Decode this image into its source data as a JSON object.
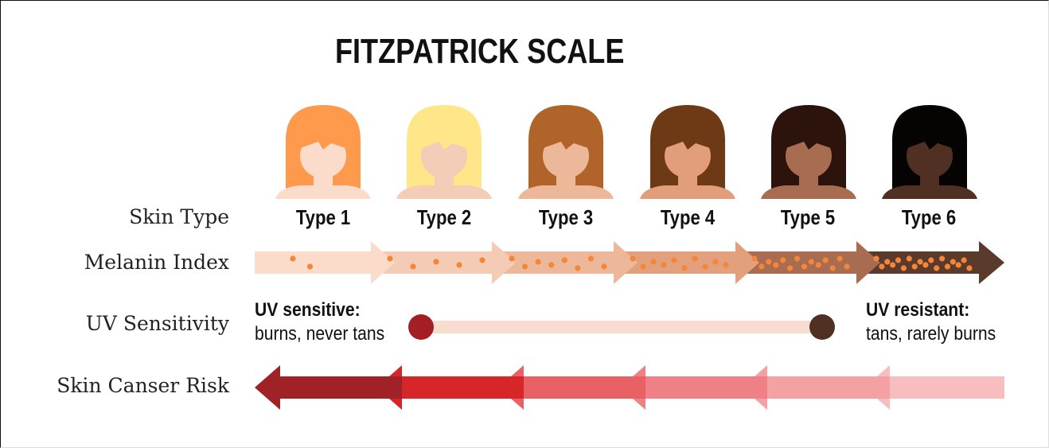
{
  "title": "FITZPATRICK SCALE",
  "row_labels": {
    "skin_type": "Skin Type",
    "melanin_index": "Melanin Index",
    "uv_sensitivity": "UV Sensitivity",
    "skin_cancer_risk": "Skin Canser Risk"
  },
  "types": [
    {
      "label": "Type 1",
      "hair": "#FF9A4D",
      "skin": "#FBDCCB",
      "melanin_dots": 2
    },
    {
      "label": "Type 2",
      "hair": "#FFE688",
      "skin": "#F3CDB8",
      "melanin_dots": 5
    },
    {
      "label": "Type 3",
      "hair": "#B0642A",
      "skin": "#EDB899",
      "melanin_dots": 8
    },
    {
      "label": "Type 4",
      "hair": "#6E3A15",
      "skin": "#E29E7B",
      "melanin_dots": 10
    },
    {
      "label": "Type 5",
      "hair": "#2C130C",
      "skin": "#A86C50",
      "melanin_dots": 14
    },
    {
      "label": "Type 6",
      "hair": "#060303",
      "skin": "#4F3023",
      "melanin_dots": 18
    }
  ],
  "melanin_arrow_colors": [
    "#FBDCCB",
    "#F4CBB5",
    "#EDB799",
    "#E2A07C",
    "#A86C50",
    "#5A3A2A"
  ],
  "melanin_dot_color": "#F4863A",
  "uv": {
    "left_title": "UV sensitive:",
    "left_sub": "burns, never tans",
    "right_title": "UV resistant:",
    "right_sub": "tans, rarely burns",
    "left_dot_color": "#A31F24",
    "right_dot_color": "#4F3023",
    "track_color": "#F8DCCF"
  },
  "risk_arrow_colors": [
    "#A02126",
    "#D7262A",
    "#E96165",
    "#EF8186",
    "#F4A1A4",
    "#F8BDBF"
  ]
}
